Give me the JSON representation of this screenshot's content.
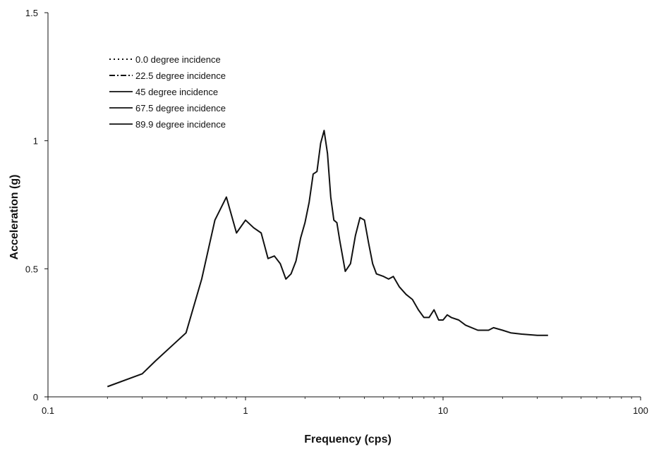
{
  "chart_data": {
    "type": "line",
    "title": "",
    "xlabel": "Frequency (cps)",
    "ylabel": "Acceleration (g)",
    "xscale": "log",
    "xlim": [
      0.1,
      100
    ],
    "ylim": [
      0,
      1.5
    ],
    "x_ticks": [
      0.1,
      1,
      10,
      100
    ],
    "x_tick_labels": [
      "0.1",
      "1",
      "10",
      "100"
    ],
    "y_ticks": [
      0,
      0.5,
      1,
      1.5
    ],
    "y_tick_labels": [
      "0",
      "0.5",
      "1",
      "1.5"
    ],
    "grid": false,
    "legend_position": "top-left",
    "line_color": "#111111",
    "legend": [
      {
        "label": "0.0 degree incidence",
        "dash": "dotted"
      },
      {
        "label": "22.5 degree incidence",
        "dash": "dash-dot"
      },
      {
        "label": "45 degree incidence",
        "dash": "solid"
      },
      {
        "label": "67.5 degree incidence",
        "dash": "solid"
      },
      {
        "label": "89.9 degree incidence",
        "dash": "solid"
      }
    ],
    "series": [
      {
        "name": "89.9 degree incidence",
        "x": [
          0.2,
          0.3,
          0.35,
          0.5,
          0.6,
          0.7,
          0.8,
          0.9,
          1.0,
          1.1,
          1.2,
          1.3,
          1.4,
          1.5,
          1.6,
          1.7,
          1.8,
          1.9,
          2.0,
          2.1,
          2.2,
          2.3,
          2.4,
          2.5,
          2.6,
          2.7,
          2.8,
          2.9,
          3.0,
          3.2,
          3.4,
          3.6,
          3.8,
          4.0,
          4.2,
          4.4,
          4.6,
          5.0,
          5.3,
          5.6,
          6.0,
          6.5,
          7.0,
          7.5,
          8.0,
          8.5,
          9.0,
          9.5,
          10.0,
          10.5,
          11.0,
          12.0,
          13.0,
          15.0,
          16.0,
          17.0,
          18.0,
          20.0,
          22.0,
          25.0,
          30.0,
          34.0
        ],
        "y": [
          0.04,
          0.09,
          0.14,
          0.25,
          0.46,
          0.69,
          0.78,
          0.64,
          0.69,
          0.66,
          0.64,
          0.54,
          0.55,
          0.52,
          0.46,
          0.48,
          0.53,
          0.62,
          0.68,
          0.76,
          0.87,
          0.88,
          0.99,
          1.04,
          0.95,
          0.78,
          0.69,
          0.68,
          0.61,
          0.49,
          0.52,
          0.63,
          0.7,
          0.69,
          0.6,
          0.52,
          0.48,
          0.47,
          0.46,
          0.47,
          0.43,
          0.4,
          0.38,
          0.34,
          0.31,
          0.31,
          0.34,
          0.3,
          0.3,
          0.32,
          0.31,
          0.3,
          0.28,
          0.26,
          0.26,
          0.26,
          0.27,
          0.26,
          0.25,
          0.245,
          0.24,
          0.24
        ]
      }
    ]
  }
}
